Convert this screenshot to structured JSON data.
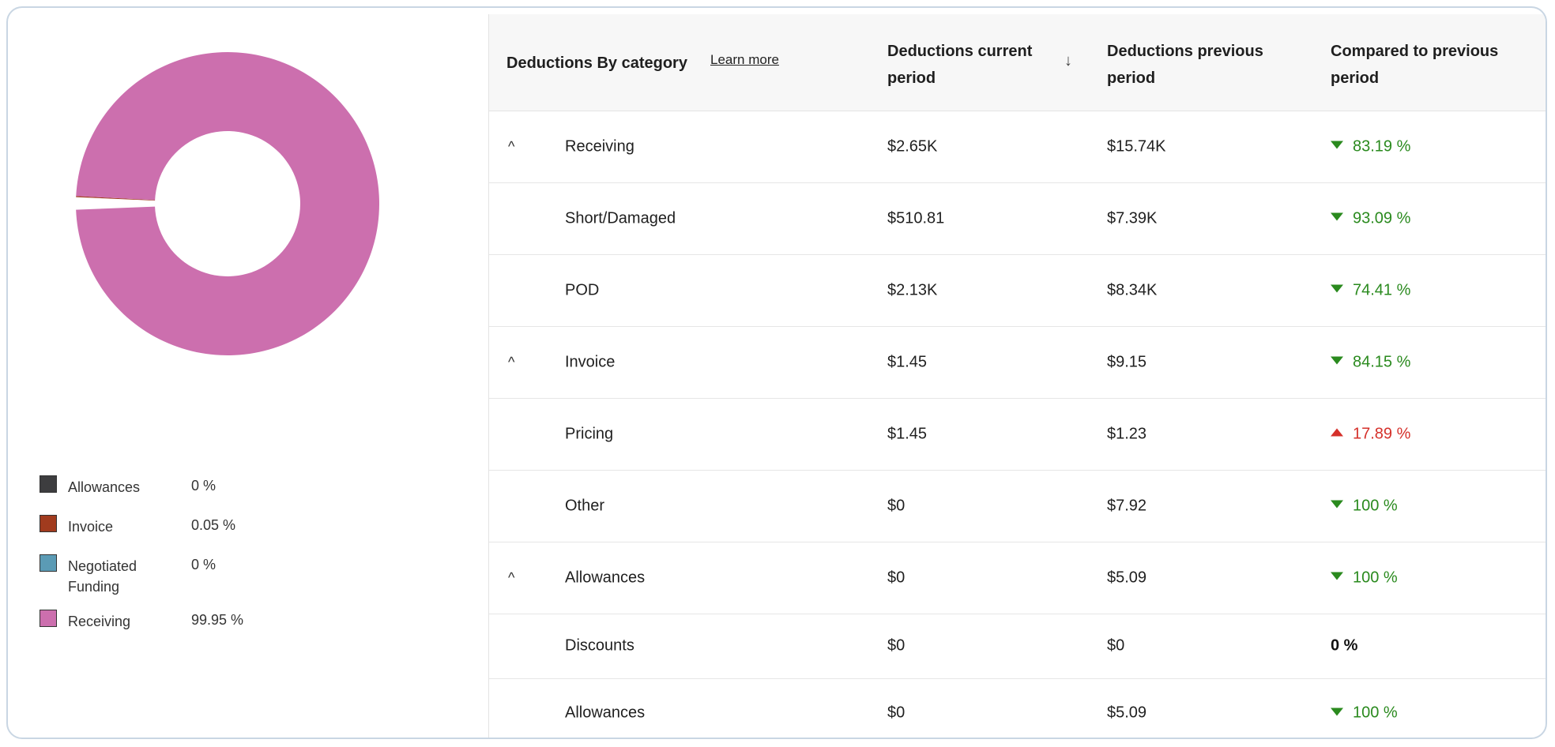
{
  "chart_data": {
    "type": "pie",
    "categories": [
      "Allowances",
      "Invoice",
      "Negotiated Funding",
      "Receiving"
    ],
    "values": [
      0,
      0.05,
      0,
      99.95
    ],
    "colors": [
      "#3d3d3f",
      "#a13b1e",
      "#5b9bb5",
      "#cc6fae"
    ],
    "donut": true
  },
  "legend": {
    "items": [
      {
        "label": "Allowances",
        "value": "0 %",
        "color": "#3d3d3f"
      },
      {
        "label": "Invoice",
        "value": "0.05 %",
        "color": "#a13b1e"
      },
      {
        "label": "Negotiated Funding",
        "value": "0 %",
        "color": "#5b9bb5"
      },
      {
        "label": "Receiving",
        "value": "99.95 %",
        "color": "#cc6fae"
      }
    ]
  },
  "table": {
    "headers": {
      "category": "Deductions By category",
      "learn_more": "Learn more",
      "current": "Deductions current period",
      "sort_icon": "↓",
      "previous": "Deductions previous period",
      "compare": "Compared to previous period"
    },
    "rows": [
      {
        "chevron": "^",
        "category": "Receiving",
        "current": "$2.65K",
        "previous": "$15.74K",
        "compare": "83.19 %",
        "trend": "down"
      },
      {
        "chevron": "",
        "category": "Short/Damaged",
        "current": "$510.81",
        "previous": "$7.39K",
        "compare": "93.09 %",
        "trend": "down"
      },
      {
        "chevron": "",
        "category": "POD",
        "current": "$2.13K",
        "previous": "$8.34K",
        "compare": "74.41 %",
        "trend": "down"
      },
      {
        "chevron": "^",
        "category": "Invoice",
        "current": "$1.45",
        "previous": "$9.15",
        "compare": "84.15 %",
        "trend": "down"
      },
      {
        "chevron": "",
        "category": "Pricing",
        "current": "$1.45",
        "previous": "$1.23",
        "compare": "17.89 %",
        "trend": "up"
      },
      {
        "chevron": "",
        "category": "Other",
        "current": "$0",
        "previous": "$7.92",
        "compare": "100 %",
        "trend": "down"
      },
      {
        "chevron": "^",
        "category": "Allowances",
        "current": "$0",
        "previous": "$5.09",
        "compare": "100 %",
        "trend": "down"
      },
      {
        "chevron": "",
        "category": "Discounts",
        "current": "$0",
        "previous": "$0",
        "compare": "0 %",
        "trend": "neutral"
      },
      {
        "chevron": "",
        "category": "Allowances",
        "current": "$0",
        "previous": "$5.09",
        "compare": "100 %",
        "trend": "down"
      }
    ]
  },
  "colors": {
    "trend_down": "#2a8a1e",
    "trend_up": "#d5302a"
  }
}
